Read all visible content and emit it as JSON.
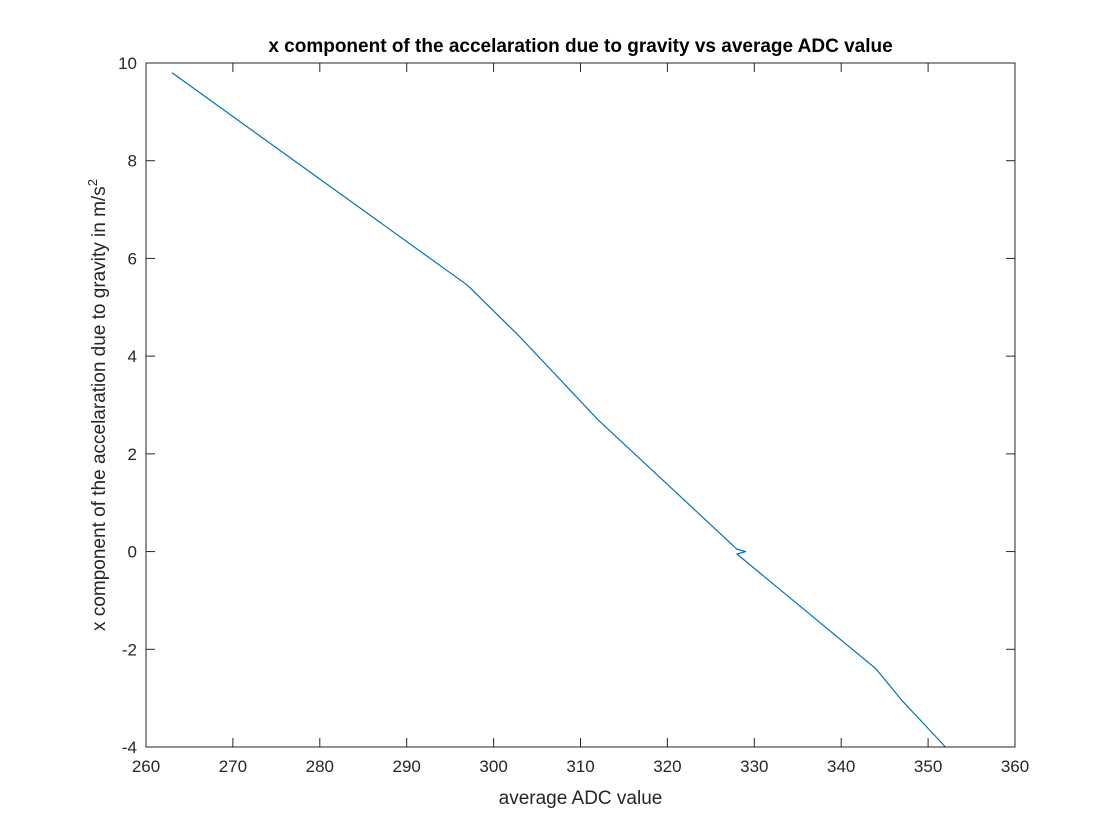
{
  "chart_data": {
    "type": "line",
    "title": "x component of the accelaration due to gravity vs average ADC value",
    "xlabel": "average ADC value",
    "ylabel": {
      "main": "x component of the accelaration due to gravity in m/s",
      "superscript": "2"
    },
    "xlim": [
      260,
      360
    ],
    "ylim": [
      -4,
      10
    ],
    "xticks": [
      260,
      270,
      280,
      290,
      300,
      310,
      320,
      330,
      340,
      350,
      360
    ],
    "yticks": [
      -4,
      -2,
      0,
      2,
      4,
      6,
      8,
      10
    ],
    "grid": false,
    "box": true,
    "line_color": "#0072BD",
    "series": [
      {
        "x": [
          263.0,
          297.0,
          303.0,
          312.0,
          328.0,
          329.0,
          328.0,
          344.0,
          347.0,
          352.0
        ],
        "y": [
          9.8,
          5.45,
          4.4,
          2.7,
          0.05,
          0.0,
          -0.05,
          -2.4,
          -3.05,
          -4.0
        ]
      }
    ]
  },
  "colors": {
    "axis": "#262626",
    "background": "#ffffff"
  }
}
